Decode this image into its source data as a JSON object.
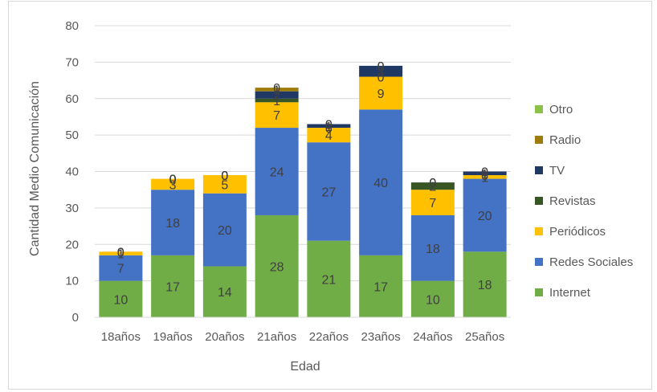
{
  "chart_data": {
    "type": "bar",
    "stacked": true,
    "xlabel": "Edad",
    "ylabel": "Cantidad Medio Comunicación",
    "ylim": [
      0,
      80
    ],
    "yticks": [
      0,
      10,
      20,
      30,
      40,
      50,
      60,
      70,
      80
    ],
    "grid": true,
    "legend_position": "right",
    "categories": [
      "18años",
      "19años",
      "20años",
      "21años",
      "22años",
      "23años",
      "24años",
      "25años"
    ],
    "series": [
      {
        "name": "Internet",
        "color": "#70ad47",
        "values": [
          10,
          17,
          14,
          28,
          21,
          17,
          10,
          18
        ]
      },
      {
        "name": "Redes Sociales",
        "color": "#4472c4",
        "values": [
          7,
          18,
          20,
          24,
          27,
          40,
          18,
          20
        ]
      },
      {
        "name": "Periódicos",
        "color": "#ffc000",
        "values": [
          1,
          3,
          5,
          7,
          4,
          9,
          7,
          1
        ]
      },
      {
        "name": "Revistas",
        "color": "#375623",
        "values": [
          0,
          0,
          0,
          1,
          0,
          0,
          2,
          0
        ]
      },
      {
        "name": "TV",
        "color": "#203864",
        "values": [
          0,
          0,
          0,
          2,
          1,
          3,
          0,
          1
        ]
      },
      {
        "name": "Radio",
        "color": "#9e7c0c",
        "values": [
          0,
          0,
          0,
          1,
          0,
          0,
          0,
          0
        ]
      },
      {
        "name": "Otro",
        "color": "#8bc34a",
        "values": [
          0,
          0,
          0,
          0,
          0,
          0,
          0,
          0
        ]
      }
    ]
  }
}
